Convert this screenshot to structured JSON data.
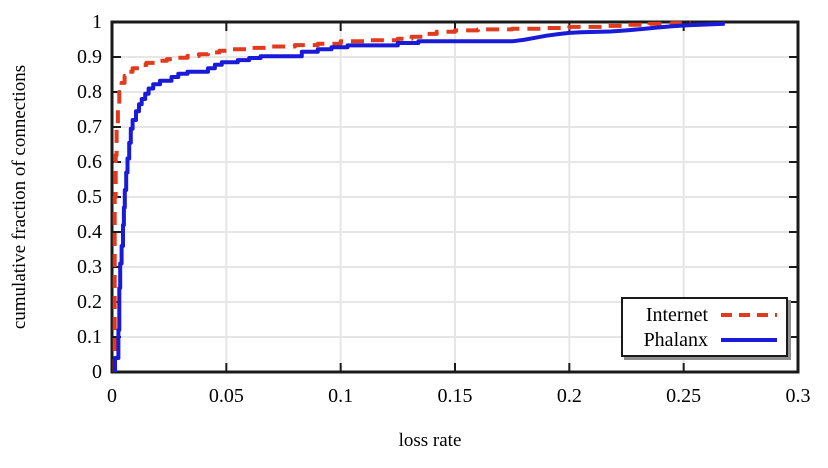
{
  "chart_data": {
    "type": "line",
    "title": "",
    "xlabel": "loss rate",
    "ylabel": "cumulative fraction of connections",
    "xlim": [
      0,
      0.3
    ],
    "ylim": [
      0,
      1
    ],
    "grid": true,
    "legend_position": "bottom-right",
    "x_ticks": [
      0,
      0.05,
      0.1,
      0.15,
      0.2,
      0.25,
      0.3
    ],
    "x_tick_labels": [
      "0",
      "0.05",
      "0.1",
      "0.15",
      "0.2",
      "0.25",
      "0.3"
    ],
    "y_ticks": [
      0,
      0.1,
      0.2,
      0.3,
      0.4,
      0.5,
      0.6,
      0.7,
      0.8,
      0.9,
      1
    ],
    "y_tick_labels": [
      "0",
      "0.1",
      "0.2",
      "0.3",
      "0.4",
      "0.5",
      "0.6",
      "0.7",
      "0.8",
      "0.9",
      "1"
    ],
    "series": [
      {
        "name": "Internet",
        "color": "#e23a1c",
        "style": "dashed",
        "points": [
          [
            0.0012,
            0
          ],
          [
            0.0012,
            0.5
          ],
          [
            0.0016,
            0.5
          ],
          [
            0.0016,
            0.62
          ],
          [
            0.002,
            0.62
          ],
          [
            0.002,
            0.7
          ],
          [
            0.0026,
            0.7
          ],
          [
            0.0026,
            0.76
          ],
          [
            0.0032,
            0.76
          ],
          [
            0.0032,
            0.8
          ],
          [
            0.0042,
            0.8
          ],
          [
            0.0042,
            0.826
          ],
          [
            0.0055,
            0.826
          ],
          [
            0.0055,
            0.846
          ],
          [
            0.007,
            0.846
          ],
          [
            0.007,
            0.858
          ],
          [
            0.009,
            0.858
          ],
          [
            0.009,
            0.868
          ],
          [
            0.012,
            0.868
          ],
          [
            0.012,
            0.877
          ],
          [
            0.015,
            0.877
          ],
          [
            0.015,
            0.883
          ],
          [
            0.019,
            0.883
          ],
          [
            0.019,
            0.889
          ],
          [
            0.024,
            0.889
          ],
          [
            0.024,
            0.894
          ],
          [
            0.028,
            0.894
          ],
          [
            0.028,
            0.898
          ],
          [
            0.033,
            0.898
          ],
          [
            0.033,
            0.903
          ],
          [
            0.038,
            0.903
          ],
          [
            0.038,
            0.908
          ],
          [
            0.042,
            0.908
          ],
          [
            0.042,
            0.913
          ],
          [
            0.047,
            0.913
          ],
          [
            0.047,
            0.918
          ],
          [
            0.052,
            0.918
          ],
          [
            0.052,
            0.922
          ],
          [
            0.06,
            0.922
          ],
          [
            0.06,
            0.926
          ],
          [
            0.07,
            0.926
          ],
          [
            0.07,
            0.93
          ],
          [
            0.08,
            0.93
          ],
          [
            0.08,
            0.934
          ],
          [
            0.09,
            0.934
          ],
          [
            0.09,
            0.938
          ],
          [
            0.1,
            0.938
          ],
          [
            0.1,
            0.945
          ],
          [
            0.112,
            0.945
          ],
          [
            0.112,
            0.948
          ],
          [
            0.125,
            0.948
          ],
          [
            0.125,
            0.952
          ],
          [
            0.131,
            0.952
          ],
          [
            0.131,
            0.958
          ],
          [
            0.136,
            0.958
          ],
          [
            0.136,
            0.966
          ],
          [
            0.142,
            0.966
          ],
          [
            0.142,
            0.972
          ],
          [
            0.15,
            0.972
          ],
          [
            0.15,
            0.976
          ],
          [
            0.16,
            0.976
          ],
          [
            0.16,
            0.979
          ],
          [
            0.175,
            0.979
          ],
          [
            0.175,
            0.981
          ],
          [
            0.19,
            0.981
          ],
          [
            0.19,
            0.983
          ],
          [
            0.2,
            0.983
          ],
          [
            0.2,
            0.986
          ],
          [
            0.215,
            0.986
          ],
          [
            0.215,
            0.989
          ],
          [
            0.225,
            0.989
          ],
          [
            0.225,
            0.992
          ],
          [
            0.235,
            0.992
          ],
          [
            0.235,
            0.995
          ],
          [
            0.245,
            0.995
          ],
          [
            0.245,
            0.997
          ],
          [
            0.253,
            0.997
          ]
        ]
      },
      {
        "name": "Phalanx",
        "color": "#1a1ad9",
        "style": "solid",
        "points": [
          [
            0.0013,
            0
          ],
          [
            0.0013,
            0.04
          ],
          [
            0.0028,
            0.04
          ],
          [
            0.0028,
            0.12
          ],
          [
            0.0032,
            0.12
          ],
          [
            0.0032,
            0.24
          ],
          [
            0.0036,
            0.24
          ],
          [
            0.0036,
            0.31
          ],
          [
            0.0042,
            0.31
          ],
          [
            0.0042,
            0.36
          ],
          [
            0.0048,
            0.36
          ],
          [
            0.0048,
            0.42
          ],
          [
            0.0052,
            0.42
          ],
          [
            0.0052,
            0.47
          ],
          [
            0.0056,
            0.47
          ],
          [
            0.0056,
            0.52
          ],
          [
            0.0062,
            0.52
          ],
          [
            0.0062,
            0.57
          ],
          [
            0.0068,
            0.57
          ],
          [
            0.0068,
            0.61
          ],
          [
            0.0075,
            0.61
          ],
          [
            0.0075,
            0.655
          ],
          [
            0.0082,
            0.655
          ],
          [
            0.0082,
            0.695
          ],
          [
            0.009,
            0.695
          ],
          [
            0.009,
            0.72
          ],
          [
            0.0105,
            0.72
          ],
          [
            0.0105,
            0.745
          ],
          [
            0.0118,
            0.745
          ],
          [
            0.0118,
            0.765
          ],
          [
            0.013,
            0.765
          ],
          [
            0.013,
            0.78
          ],
          [
            0.0145,
            0.78
          ],
          [
            0.0145,
            0.795
          ],
          [
            0.016,
            0.795
          ],
          [
            0.016,
            0.81
          ],
          [
            0.018,
            0.81
          ],
          [
            0.018,
            0.822
          ],
          [
            0.021,
            0.822
          ],
          [
            0.021,
            0.832
          ],
          [
            0.026,
            0.832
          ],
          [
            0.026,
            0.843
          ],
          [
            0.029,
            0.843
          ],
          [
            0.029,
            0.852
          ],
          [
            0.033,
            0.852
          ],
          [
            0.033,
            0.858
          ],
          [
            0.042,
            0.858
          ],
          [
            0.042,
            0.868
          ],
          [
            0.045,
            0.868
          ],
          [
            0.045,
            0.878
          ],
          [
            0.048,
            0.878
          ],
          [
            0.048,
            0.885
          ],
          [
            0.055,
            0.885
          ],
          [
            0.055,
            0.891
          ],
          [
            0.06,
            0.891
          ],
          [
            0.06,
            0.897
          ],
          [
            0.065,
            0.897
          ],
          [
            0.065,
            0.902
          ],
          [
            0.083,
            0.902
          ],
          [
            0.083,
            0.915
          ],
          [
            0.09,
            0.915
          ],
          [
            0.09,
            0.922
          ],
          [
            0.096,
            0.922
          ],
          [
            0.096,
            0.928
          ],
          [
            0.103,
            0.928
          ],
          [
            0.103,
            0.933
          ],
          [
            0.125,
            0.933
          ],
          [
            0.125,
            0.94
          ],
          [
            0.134,
            0.94
          ],
          [
            0.134,
            0.945
          ],
          [
            0.175,
            0.945
          ],
          [
            0.18,
            0.949
          ],
          [
            0.185,
            0.955
          ],
          [
            0.19,
            0.961
          ],
          [
            0.196,
            0.966
          ],
          [
            0.2,
            0.969
          ],
          [
            0.205,
            0.971
          ],
          [
            0.218,
            0.973
          ],
          [
            0.225,
            0.976
          ],
          [
            0.232,
            0.98
          ],
          [
            0.238,
            0.984
          ],
          [
            0.245,
            0.988
          ],
          [
            0.252,
            0.991
          ],
          [
            0.26,
            0.993
          ],
          [
            0.268,
            0.995
          ]
        ]
      }
    ]
  },
  "style": {
    "grid_color": "#e6e6e6",
    "axis_color": "#1a1a1a",
    "background": "#ffffff",
    "legend_shadow": "#8f8f8f"
  }
}
